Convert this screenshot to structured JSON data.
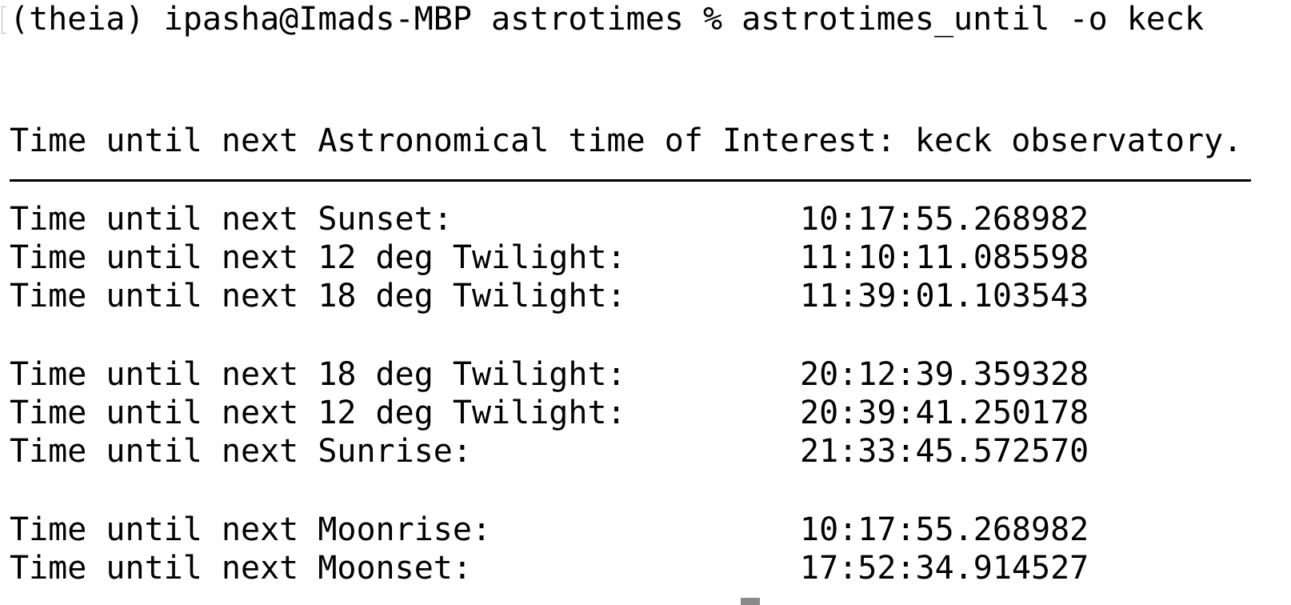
{
  "terminal": {
    "command_line": "(theia) ipasha@Imads-MBP astrotimes % astrotimes_until -o keck",
    "header": "Time until next Astronomical time of Interest: keck observatory.",
    "rows": [
      {
        "label": "Time until next Sunset:",
        "value": "10:17:55.268982"
      },
      {
        "label": "Time until next 12 deg Twilight:",
        "value": "11:10:11.085598"
      },
      {
        "label": "Time until next 18 deg Twilight:",
        "value": "11:39:01.103543"
      },
      {
        "label": "Time until next 18 deg Twilight:",
        "value": "20:12:39.359328"
      },
      {
        "label": "Time until next 12 deg Twilight:",
        "value": "20:39:41.250178"
      },
      {
        "label": "Time until next Sunrise:",
        "value": "21:33:45.572570"
      },
      {
        "label": "Time until next Moonrise:",
        "value": "10:17:55.268982"
      },
      {
        "label": "Time until next Moonset:",
        "value": "17:52:34.914527"
      }
    ]
  }
}
